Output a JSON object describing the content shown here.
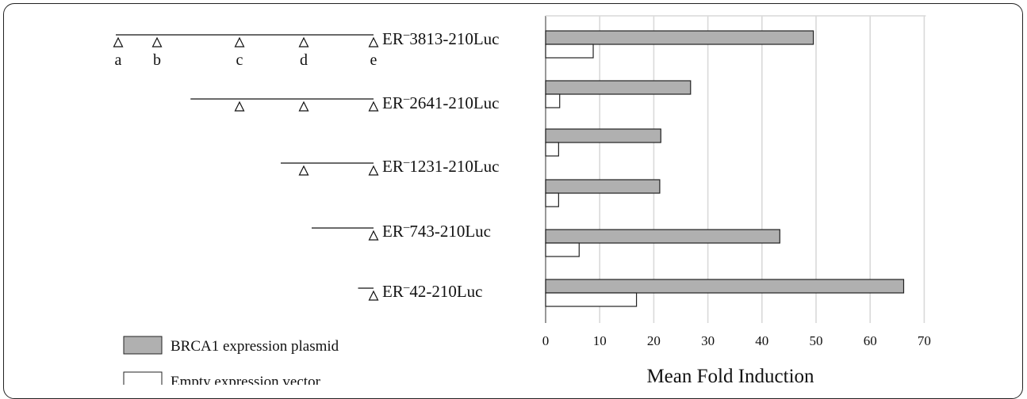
{
  "chart_data": {
    "type": "bar",
    "orientation": "horizontal",
    "xlabel": "Mean Fold Induction",
    "xlim": [
      0,
      70
    ],
    "xticks": [
      0,
      10,
      20,
      30,
      40,
      50,
      60,
      70
    ],
    "grid": "vertical",
    "categories": [
      {
        "prefix": "ER",
        "sup": "–",
        "suffix": "3813-210Luc"
      },
      {
        "prefix": "ER",
        "sup": "–",
        "suffix": "2641-210Luc"
      },
      {
        "prefix": "ER",
        "sup": "–",
        "suffix": "1231-210Luc"
      },
      {
        "prefix": "",
        "sup": "",
        "suffix": ""
      },
      {
        "prefix": "ER",
        "sup": "–",
        "suffix": "743-210Luc"
      },
      {
        "prefix": "ER",
        "sup": "–",
        "suffix": "42-210Luc"
      }
    ],
    "series": [
      {
        "name": "BRCA1 expression plasmid",
        "values": [
          49.5,
          26.8,
          21.3,
          21.1,
          43.3,
          66.2
        ],
        "color": "#b0b0b0"
      },
      {
        "name": "Empty expression vector",
        "values": [
          8.8,
          2.6,
          2.4,
          2.4,
          6.2,
          16.8
        ],
        "color": "#ffffff"
      }
    ],
    "site_labels": [
      "a",
      "b",
      "c",
      "d",
      "e"
    ],
    "constructs": [
      {
        "start_frac": 0.0,
        "sites": [
          "a",
          "b",
          "c",
          "d",
          "e"
        ]
      },
      {
        "start_frac": 0.29,
        "sites": [
          "c",
          "d",
          "e"
        ]
      },
      {
        "start_frac": 0.64,
        "sites": [
          "d",
          "e"
        ]
      },
      null,
      {
        "start_frac": 0.76,
        "sites": [
          "e"
        ]
      },
      {
        "start_frac": 0.94,
        "sites": [
          "e"
        ]
      }
    ]
  },
  "colors": {
    "brca1": "#b0b0b0",
    "empty": "#ffffff",
    "grid": "#d9d9d9",
    "axis": "#222222"
  }
}
